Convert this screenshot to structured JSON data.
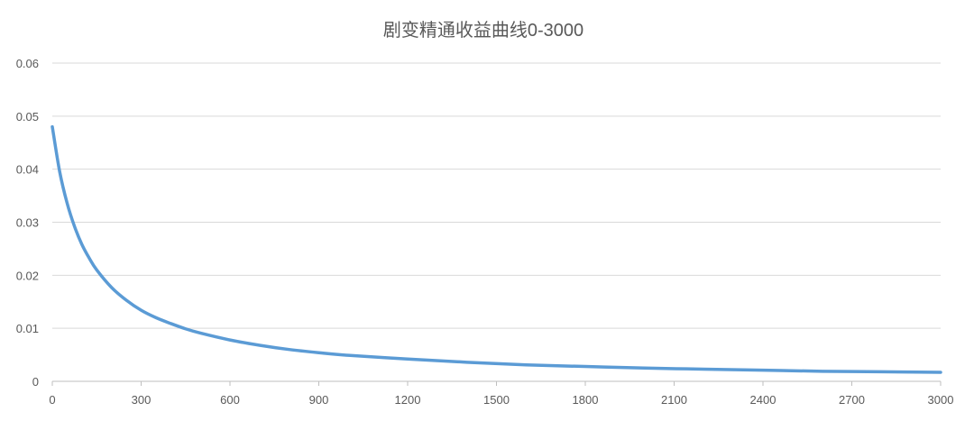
{
  "chart_data": {
    "type": "line",
    "title": "剧变精通收益曲线0-3000",
    "xlabel": "",
    "ylabel": "",
    "xlim": [
      0,
      3000
    ],
    "ylim": [
      0,
      0.06
    ],
    "x_ticks": [
      "0",
      "300",
      "600",
      "900",
      "1200",
      "1500",
      "1800",
      "2100",
      "2400",
      "2700",
      "3000"
    ],
    "y_ticks": [
      "0",
      "0.01",
      "0.02",
      "0.03",
      "0.04",
      "0.05",
      "0.06"
    ],
    "grid": true,
    "legend": "none",
    "series_color": "#5b9bd5",
    "series": [
      {
        "name": "",
        "x": [
          0,
          25,
          50,
          75,
          100,
          125,
          150,
          200,
          250,
          300,
          350,
          400,
          450,
          500,
          600,
          700,
          800,
          900,
          1000,
          1200,
          1400,
          1600,
          1800,
          2000,
          2200,
          2400,
          2600,
          2800,
          3000
        ],
        "y": [
          0.048,
          0.0395,
          0.0336,
          0.0292,
          0.0258,
          0.0232,
          0.021,
          0.0177,
          0.0153,
          0.0134,
          0.012,
          0.0109,
          0.0099,
          0.0091,
          0.0078,
          0.0068,
          0.006,
          0.0054,
          0.0049,
          0.0042,
          0.0036,
          0.0031,
          0.0028,
          0.0025,
          0.0023,
          0.0021,
          0.0019,
          0.0018,
          0.0017
        ]
      }
    ]
  }
}
